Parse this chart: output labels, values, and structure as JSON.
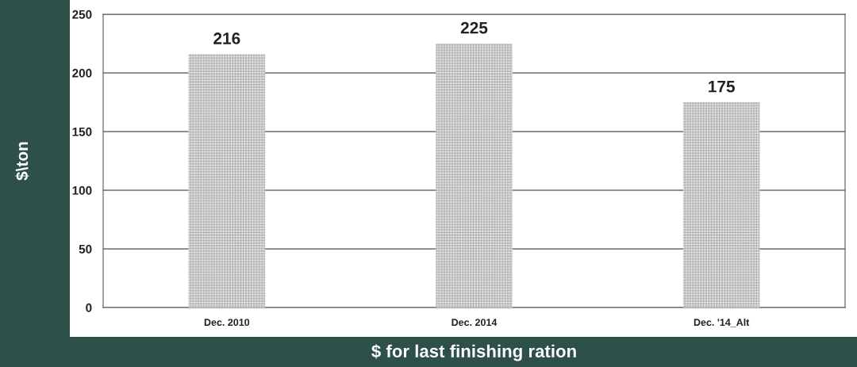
{
  "chart_data": {
    "type": "bar",
    "xlabel": "$ for last finishing ration",
    "ylabel": "$\\ton",
    "categories": [
      "Dec. 2010",
      "Dec. 2014",
      "Dec. '14_Alt"
    ],
    "values": [
      216,
      225,
      175
    ],
    "color": "#a8a8a8",
    "ylim": [
      0,
      250
    ],
    "yticks": [
      0,
      50,
      100,
      150,
      200,
      250
    ],
    "grid": "y",
    "data_labels": true
  }
}
